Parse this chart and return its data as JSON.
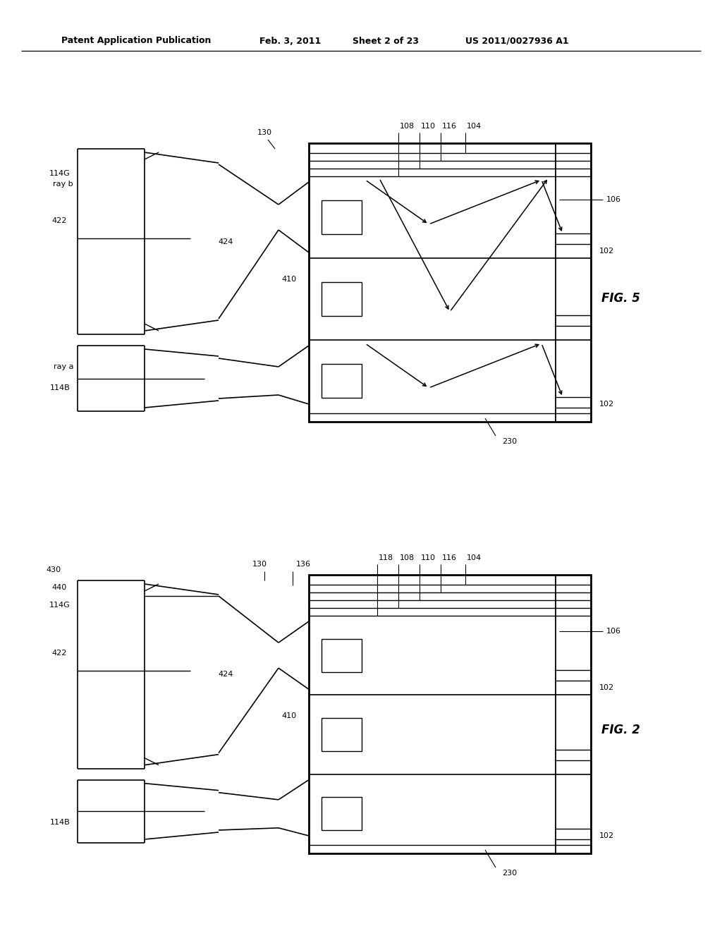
{
  "title_line1": "Patent Application Publication",
  "title_line2": "Feb. 3, 2011",
  "title_line3": "Sheet 2 of 23",
  "title_line4": "US 2011/0027936 A1",
  "fig5_label": "FIG. 5",
  "fig2_label": "FIG. 2",
  "bg_color": "#ffffff",
  "line_color": "#000000"
}
